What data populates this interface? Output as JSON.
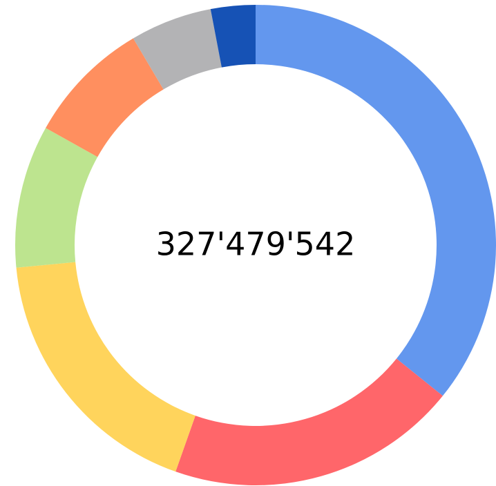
{
  "chart_data": {
    "type": "donut",
    "center_text": "327'479'542",
    "values": [
      35.8,
      19.6,
      18.1,
      9.6,
      8.4,
      5.5,
      3.0
    ],
    "colors": [
      "#6397ee",
      "#ff666a",
      "#ffd45c",
      "#bde48f",
      "#ff8f5f",
      "#b3b3b5",
      "#1652b5"
    ]
  }
}
